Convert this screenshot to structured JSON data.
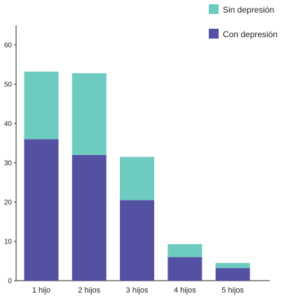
{
  "chart_data": {
    "type": "bar",
    "stacked": true,
    "categories": [
      "1 hijo",
      "2 hijos",
      "3 hijos",
      "4 hijos",
      "5 hijos"
    ],
    "series": [
      {
        "name": "Con depresión",
        "color": "#5451a3",
        "values": [
          36,
          32,
          20.5,
          6,
          3.2
        ]
      },
      {
        "name": "Sin depresión",
        "color": "#6ecbbf",
        "values": [
          17.2,
          20.8,
          11,
          3.3,
          1.3
        ]
      }
    ],
    "ylim": [
      0,
      65
    ],
    "yticks": [
      0,
      10,
      20,
      30,
      40,
      50,
      60
    ],
    "grid": false,
    "legend_position": "top-right"
  }
}
